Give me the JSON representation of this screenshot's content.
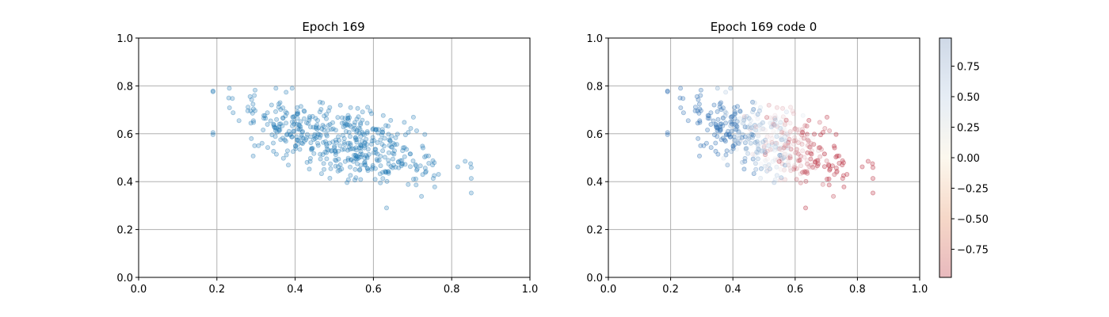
{
  "chart_data": [
    {
      "type": "scatter",
      "title": "Epoch 169",
      "xlabel": "",
      "ylabel": "",
      "xlim": [
        0.0,
        1.0
      ],
      "ylim": [
        0.0,
        1.0
      ],
      "xticks": [
        "0.0",
        "0.2",
        "0.4",
        "0.6",
        "0.8",
        "1.0"
      ],
      "yticks": [
        "0.0",
        "0.2",
        "0.4",
        "0.6",
        "0.8",
        "1.0"
      ],
      "grid": true,
      "marker_color": "#1f77b4",
      "marker_alpha": 0.25,
      "point_count": 500,
      "cloud": {
        "x_mean": 0.52,
        "x_sd": 0.13,
        "x_min": 0.19,
        "x_max": 0.85,
        "y_trend_at_x0_3": 0.66,
        "y_trend_at_x0_8": 0.44,
        "y_sd": 0.07,
        "y_min": 0.29,
        "y_max": 0.79
      }
    },
    {
      "type": "scatter",
      "title": "Epoch 169 code 0",
      "xlabel": "",
      "ylabel": "",
      "xlim": [
        0.0,
        1.0
      ],
      "ylim": [
        0.0,
        1.0
      ],
      "xticks": [
        "0.0",
        "0.2",
        "0.4",
        "0.6",
        "0.8",
        "1.0"
      ],
      "yticks": [
        "0.0",
        "0.2",
        "0.4",
        "0.6",
        "0.8",
        "1.0"
      ],
      "grid": true,
      "colormap": "RdBu",
      "marker_alpha": 0.25,
      "color_trend": "blue on the left (x≈0.3–0.45), pale/cream in the middle (x≈0.5–0.6), red on the right (x≈0.65–0.8)",
      "colorbar": {
        "range": [
          -0.98,
          0.98
        ],
        "ticks": [
          "−0.75",
          "−0.50",
          "−0.25",
          "0.00",
          "0.25",
          "0.50",
          "0.75"
        ],
        "tick_values": [
          -0.75,
          -0.5,
          -0.25,
          0.0,
          0.25,
          0.5,
          0.75
        ]
      }
    }
  ]
}
